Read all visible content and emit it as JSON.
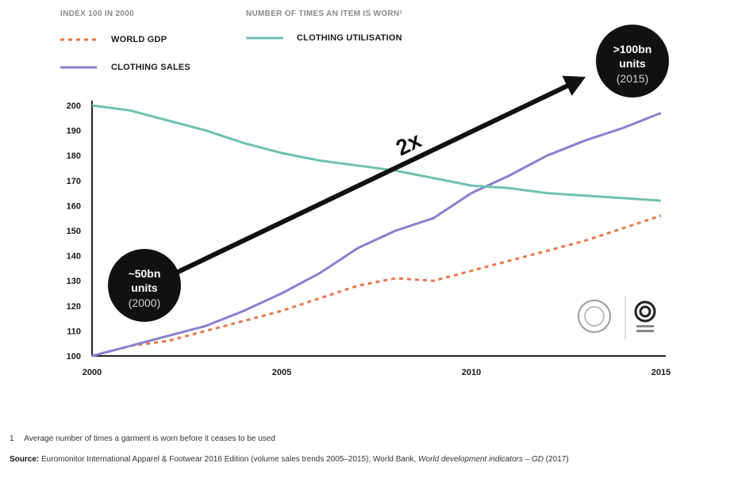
{
  "chart_data": {
    "type": "line",
    "legend": {
      "left_heading": "INDEX 100 IN 2000",
      "right_heading": "NUMBER OF TIMES AN ITEM IS WORN¹"
    },
    "x_ticks": [
      "2000",
      "2005",
      "2010",
      "2015"
    ],
    "xlim": [
      2000,
      2015
    ],
    "y_ticks": [
      100,
      110,
      120,
      130,
      140,
      150,
      160,
      170,
      180,
      190,
      200
    ],
    "ylim": [
      100,
      200
    ],
    "grid": false,
    "series": [
      {
        "name": "WORLD GDP",
        "style": "dashed",
        "color": "#e8764a",
        "points": [
          [
            2000,
            100
          ],
          [
            2001,
            104
          ],
          [
            2002,
            106
          ],
          [
            2003,
            110
          ],
          [
            2004,
            114
          ],
          [
            2005,
            118
          ],
          [
            2006,
            123
          ],
          [
            2007,
            128
          ],
          [
            2008,
            131
          ],
          [
            2009,
            130
          ],
          [
            2010,
            134
          ],
          [
            2011,
            138
          ],
          [
            2012,
            142
          ],
          [
            2013,
            146
          ],
          [
            2014,
            151
          ],
          [
            2015,
            156
          ]
        ]
      },
      {
        "name": "CLOTHING SALES",
        "style": "solid",
        "color": "#8b7fd0",
        "points": [
          [
            2000,
            100
          ],
          [
            2001,
            104
          ],
          [
            2002,
            108
          ],
          [
            2003,
            112
          ],
          [
            2004,
            118
          ],
          [
            2005,
            125
          ],
          [
            2006,
            133
          ],
          [
            2007,
            143
          ],
          [
            2008,
            150
          ],
          [
            2009,
            155
          ],
          [
            2010,
            165
          ],
          [
            2011,
            172
          ],
          [
            2012,
            180
          ],
          [
            2013,
            186
          ],
          [
            2014,
            191
          ],
          [
            2015,
            197
          ]
        ]
      },
      {
        "name": "CLOTHING UTILISATION",
        "style": "solid",
        "color": "#6fc1b2",
        "points": [
          [
            2000,
            200
          ],
          [
            2001,
            198
          ],
          [
            2002,
            194
          ],
          [
            2003,
            190
          ],
          [
            2004,
            185
          ],
          [
            2005,
            181
          ],
          [
            2006,
            178
          ],
          [
            2007,
            176
          ],
          [
            2008,
            174
          ],
          [
            2009,
            171
          ],
          [
            2010,
            168
          ],
          [
            2011,
            167
          ],
          [
            2012,
            165
          ],
          [
            2013,
            164
          ],
          [
            2014,
            163
          ],
          [
            2015,
            162
          ]
        ]
      }
    ],
    "annotations": {
      "start_circle": {
        "line1": "~50bn",
        "line2": "units",
        "line3": "(2000)"
      },
      "end_circle": {
        "line1": ">100bn",
        "line2": "units",
        "line3": "(2015)"
      },
      "arrow_label": "2x"
    }
  },
  "footnote": {
    "number": "1",
    "text": "Average number of times a garment is worn before it ceases to be used"
  },
  "source": {
    "label": "Source:",
    "text": "Euromonitor International Apparel & Footwear 2016 Edition (volume sales trends 2005–2015); World Bank, ",
    "italic": "World development indicators – GD",
    "tail": " (2017)"
  }
}
